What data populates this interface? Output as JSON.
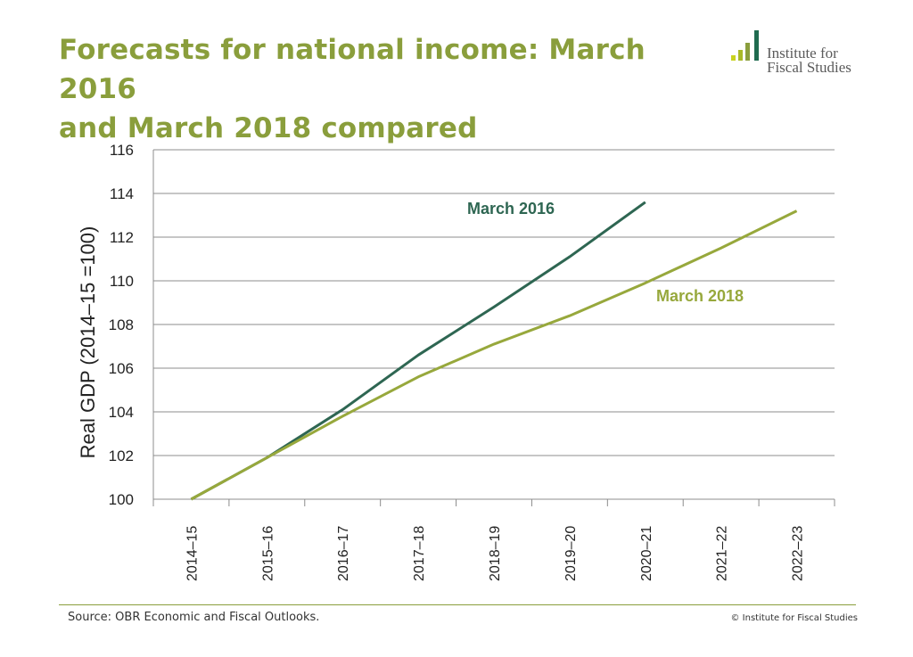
{
  "header": {
    "title_line1": "Forecasts for national income: March 2016",
    "title_line2": "and March 2018 compared",
    "logo_line1": "Institute for",
    "logo_line2": "Fiscal Studies",
    "logo_colors": [
      "#c9d21f",
      "#a8b927",
      "#8a9e3c",
      "#1f6b4f"
    ]
  },
  "chart_data": {
    "type": "line",
    "title": "",
    "xlabel": "",
    "ylabel": "Real GDP (2014–15 =100)",
    "categories": [
      "2014–15",
      "2015–16",
      "2016–17",
      "2017–18",
      "2018–19",
      "2019–20",
      "2020–21",
      "2021–22",
      "2022–23"
    ],
    "ylim": [
      100,
      116
    ],
    "yticks": [
      100,
      102,
      104,
      106,
      108,
      110,
      112,
      114,
      116
    ],
    "grid": true,
    "legend": "inline labels",
    "series": [
      {
        "name": "March 2016",
        "color": "#2e6652",
        "values": [
          100,
          101.9,
          104.1,
          106.6,
          108.8,
          111.1,
          113.6,
          null,
          null
        ]
      },
      {
        "name": "March 2018",
        "color": "#97a83c",
        "values": [
          100,
          101.9,
          103.8,
          105.6,
          107.1,
          108.4,
          109.9,
          111.5,
          113.2
        ]
      }
    ]
  },
  "footer": {
    "source": "Source: OBR Economic and Fiscal Outlooks.",
    "copyright": "© Institute for Fiscal Studies"
  }
}
